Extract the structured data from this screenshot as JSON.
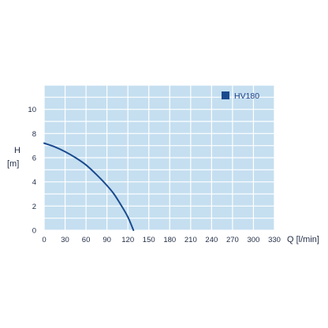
{
  "chart_data": {
    "type": "line",
    "xlabel": "Q [l/min]",
    "ylabel_line1": "H",
    "ylabel_line2": "[m]",
    "xlim": [
      0,
      330
    ],
    "ylim": [
      0,
      12
    ],
    "x_ticks": [
      0,
      30,
      60,
      90,
      120,
      150,
      180,
      210,
      240,
      270,
      300,
      330
    ],
    "y_ticks": [
      0,
      2,
      4,
      6,
      8,
      10
    ],
    "grid": true,
    "legend_position": "top-right",
    "series": [
      {
        "name": "HV180",
        "color": "#1a4a8e",
        "points": [
          {
            "x": 0,
            "y": 7.2
          },
          {
            "x": 15,
            "y": 6.9
          },
          {
            "x": 30,
            "y": 6.5
          },
          {
            "x": 45,
            "y": 6.0
          },
          {
            "x": 60,
            "y": 5.4
          },
          {
            "x": 75,
            "y": 4.6
          },
          {
            "x": 90,
            "y": 3.7
          },
          {
            "x": 100,
            "y": 3.0
          },
          {
            "x": 110,
            "y": 2.1
          },
          {
            "x": 120,
            "y": 1.1
          },
          {
            "x": 128,
            "y": 0
          }
        ]
      }
    ]
  },
  "colors": {
    "plot_background": "#c5dff0",
    "grid": "#ffffff",
    "text": "#1f2a44"
  }
}
